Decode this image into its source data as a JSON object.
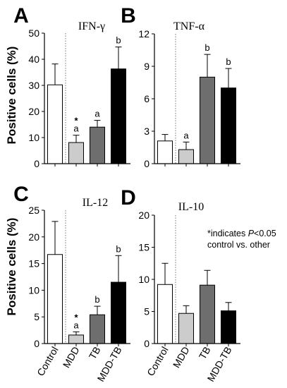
{
  "ylabel_top": "Positive cells (%)",
  "ylabel_bottom": "Positive cells (%)",
  "x_categories": [
    "Control",
    "MDD",
    "TB",
    "MDD-TB"
  ],
  "colors": {
    "Control": "#ffffff",
    "MDD": "#cccccc",
    "TB": "#6e6e6e",
    "MDD-TB": "#000000"
  },
  "note": {
    "prefix": "*indicates ",
    "p": "P",
    "suffix": "<0.05",
    "line2": "control vs. other"
  },
  "chart_data": [
    {
      "panel": "A",
      "type": "bar",
      "title": "IFN-γ",
      "categories": [
        "Control",
        "MDD",
        "TB",
        "MDD-TB"
      ],
      "values": [
        30.2,
        8.1,
        14.0,
        36.3
      ],
      "errors": [
        8.0,
        2.8,
        2.6,
        8.4
      ],
      "annotations": [
        "",
        "a",
        "a",
        "b"
      ],
      "stars": [
        "",
        "*",
        "",
        ""
      ],
      "ylim": [
        0,
        50
      ],
      "yticks": [
        0,
        10,
        20,
        30,
        40,
        50
      ]
    },
    {
      "panel": "B",
      "type": "bar",
      "title": "TNF-α",
      "categories": [
        "Control",
        "MDD",
        "TB",
        "MDD-TB"
      ],
      "values": [
        2.1,
        1.3,
        8.0,
        7.0
      ],
      "errors": [
        0.6,
        0.7,
        2.1,
        1.8
      ],
      "annotations": [
        "",
        "a",
        "b",
        "b"
      ],
      "stars": [
        "",
        "",
        "",
        ""
      ],
      "ylim": [
        0,
        12
      ],
      "yticks": [
        0,
        3,
        6,
        9,
        12
      ]
    },
    {
      "panel": "C",
      "type": "bar",
      "title": "IL-12",
      "categories": [
        "Control",
        "MDD",
        "TB",
        "MDD-TB"
      ],
      "values": [
        16.7,
        1.6,
        5.4,
        11.5
      ],
      "errors": [
        6.2,
        0.6,
        1.6,
        5.0
      ],
      "annotations": [
        "",
        "a",
        "b",
        "b"
      ],
      "stars": [
        "",
        "*",
        "",
        ""
      ],
      "ylim": [
        0,
        25
      ],
      "yticks": [
        0,
        5,
        10,
        15,
        20,
        25
      ]
    },
    {
      "panel": "D",
      "type": "bar",
      "title": "IL-10",
      "categories": [
        "Control",
        "MDD",
        "TB",
        "MDD-TB"
      ],
      "values": [
        9.2,
        4.7,
        9.1,
        5.1
      ],
      "errors": [
        3.3,
        1.2,
        2.3,
        1.3
      ],
      "annotations": [
        "",
        "",
        "",
        ""
      ],
      "stars": [
        "",
        "",
        "",
        ""
      ],
      "ylim": [
        0,
        20
      ],
      "yticks": [
        0,
        5,
        10,
        15,
        20
      ]
    }
  ]
}
